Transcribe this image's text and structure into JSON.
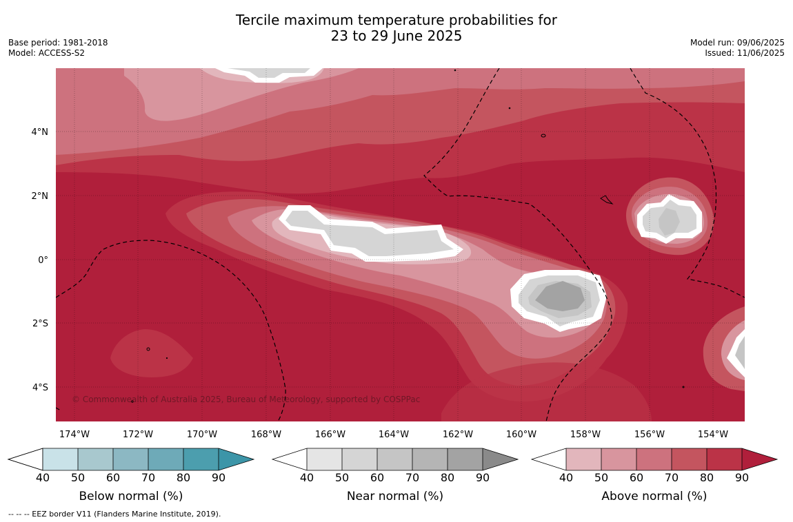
{
  "title_line1": "Tercile maximum temperature probabilities for",
  "title_line2": "23 to 29 June 2025",
  "meta_left": [
    "Base period: 1981-2018",
    "Model: ACCESS-S2"
  ],
  "meta_right": [
    "Model run: 09/06/2025",
    "Issued: 11/06/2025"
  ],
  "copyright": "© Commonwealth of Australia 2025, Bureau of Meteorology, supported by COSPPac",
  "footer": "--  --  -- EEZ border V11 (Flanders Marine Institute, 2019).",
  "map": {
    "x_ticks": [
      "174°W",
      "172°W",
      "170°W",
      "168°W",
      "166°W",
      "164°W",
      "162°W",
      "160°W",
      "158°W",
      "156°W",
      "154°W"
    ],
    "y_ticks": [
      "4°N",
      "2°N",
      "0°",
      "2°S",
      "4°S"
    ],
    "colors": {
      "above": [
        "#e2b6bc",
        "#d8959e",
        "#cd727e",
        "#c4555f",
        "#bb3347",
        "#b01f3b"
      ],
      "near": [
        "#e5e5e5",
        "#d5d5d5",
        "#c5c5c5",
        "#b5b5b5",
        "#a3a3a3",
        "#8a8a8a"
      ],
      "below": [
        "#c9e2e8",
        "#a8c8ce",
        "#8cb8c3",
        "#6eaab8",
        "#4c9eae",
        "#3c95a8"
      ]
    }
  },
  "colorbars": [
    {
      "id": "below",
      "title": "Below normal (%)",
      "labels": [
        "40",
        "50",
        "60",
        "70",
        "80",
        "90"
      ]
    },
    {
      "id": "near",
      "title": "Near normal (%)",
      "labels": [
        "40",
        "50",
        "60",
        "70",
        "80",
        "90"
      ]
    },
    {
      "id": "above",
      "title": "Above normal (%)",
      "labels": [
        "40",
        "50",
        "60",
        "70",
        "80",
        "90"
      ]
    }
  ]
}
